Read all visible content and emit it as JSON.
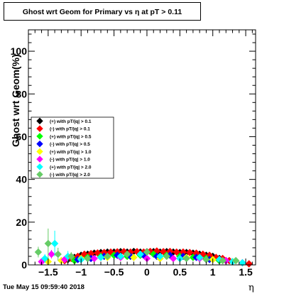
{
  "chart_data": {
    "type": "scatter",
    "title": "Ghost wrt Geom for Primary vs   η at pT > 0.11",
    "xlabel": "η",
    "ylabel": "Ghost wrt Geom(%)",
    "xlim": [
      -1.8,
      1.65
    ],
    "ylim": [
      0,
      110
    ],
    "x_ticks": [
      -1.5,
      -1,
      -0.5,
      0,
      0.5,
      1,
      1.5
    ],
    "x_tick_labels": [
      "−1.5",
      "−1",
      "−0.5",
      "0",
      "0.5",
      "1",
      "1.5"
    ],
    "y_ticks": [
      0,
      20,
      40,
      60,
      80,
      100
    ],
    "y_tick_labels": [
      "0",
      "20",
      "40",
      "60",
      "80",
      "100"
    ],
    "legend_position": "middle-left",
    "series": [
      {
        "name": "(+) with pT/|q| > 0.1",
        "color": "#000000",
        "x": [
          -1.2,
          -1.1,
          -1.0,
          -0.9,
          -0.8,
          -0.7,
          -0.6,
          -0.5,
          -0.4,
          -0.3,
          -0.2,
          -0.1,
          0.0,
          0.1,
          0.2,
          0.3,
          0.4,
          0.5,
          0.6,
          0.7,
          0.8,
          0.9,
          1.0,
          1.1,
          1.2
        ],
        "y": [
          2.5,
          3.5,
          4.5,
          5.0,
          5.5,
          5.8,
          6.0,
          6.0,
          6.2,
          6.0,
          6.3,
          6.0,
          6.1,
          6.2,
          6.0,
          6.2,
          6.0,
          5.8,
          5.8,
          5.5,
          5.0,
          4.5,
          4.0,
          3.0,
          2.0
        ],
        "err": [
          1.0,
          1.0,
          0.8,
          0.6,
          0.5,
          0.5,
          0.5,
          0.5,
          0.5,
          0.5,
          0.5,
          0.5,
          0.5,
          0.5,
          0.5,
          0.5,
          0.5,
          0.5,
          0.5,
          0.5,
          0.6,
          0.7,
          0.8,
          1.0,
          1.0
        ]
      },
      {
        "name": "(-) with pT/|q| > 0.1",
        "color": "#ff0000",
        "x": [
          -1.25,
          -1.15,
          -1.05,
          -0.95,
          -0.85,
          -0.75,
          -0.65,
          -0.55,
          -0.45,
          -0.35,
          -0.25,
          -0.15,
          -0.05,
          0.05,
          0.15,
          0.25,
          0.35,
          0.45,
          0.55,
          0.65,
          0.75,
          0.85,
          0.95,
          1.05,
          1.15,
          1.25,
          1.55
        ],
        "y": [
          2.0,
          3.0,
          4.0,
          5.0,
          5.3,
          5.6,
          5.8,
          6.0,
          6.1,
          6.2,
          6.0,
          6.2,
          6.0,
          6.3,
          6.5,
          6.2,
          6.3,
          6.0,
          6.0,
          5.8,
          5.5,
          5.0,
          4.5,
          3.5,
          3.0,
          2.0,
          0.5
        ],
        "err": [
          1.0,
          1.0,
          0.8,
          0.6,
          0.5,
          0.5,
          0.5,
          0.5,
          0.5,
          0.5,
          0.5,
          0.5,
          0.5,
          0.5,
          0.5,
          0.5,
          0.5,
          0.5,
          0.5,
          0.5,
          0.5,
          0.6,
          0.7,
          0.8,
          1.0,
          1.0,
          0.5
        ]
      },
      {
        "name": "(+) with pT/|q| > 0.5",
        "color": "#00ff00",
        "x": [
          -1.1,
          -0.9,
          -0.7,
          -0.5,
          -0.3,
          -0.1,
          0.1,
          0.3,
          0.5,
          0.7,
          0.9,
          1.1
        ],
        "y": [
          2.0,
          3.5,
          4.0,
          4.5,
          4.0,
          4.5,
          5.0,
          4.5,
          4.0,
          3.5,
          3.0,
          2.0
        ],
        "err": [
          1.2,
          1.0,
          0.8,
          0.8,
          0.8,
          0.8,
          0.8,
          0.8,
          0.8,
          0.8,
          1.0,
          1.2
        ]
      },
      {
        "name": "(-) with pT/|q| > 0.5",
        "color": "#0000ff",
        "x": [
          -1.05,
          -0.85,
          -0.65,
          -0.45,
          -0.25,
          -0.05,
          0.15,
          0.35,
          0.55,
          0.75,
          0.95
        ],
        "y": [
          2.5,
          3.0,
          4.0,
          4.5,
          4.0,
          4.5,
          4.0,
          4.5,
          4.0,
          3.5,
          2.5
        ],
        "err": [
          1.2,
          1.0,
          0.8,
          0.8,
          0.8,
          0.8,
          0.8,
          0.8,
          0.8,
          0.8,
          1.0
        ]
      },
      {
        "name": "(+) with pT/|q| > 1.0",
        "color": "#ffff00",
        "x": [
          -1.5,
          -1.3,
          -1.0,
          -0.6,
          -0.2,
          0.2,
          0.6,
          1.0,
          1.3
        ],
        "y": [
          1.5,
          2.0,
          3.0,
          3.5,
          3.5,
          3.0,
          3.5,
          2.5,
          1.5
        ],
        "err": [
          1.5,
          1.2,
          1.0,
          1.0,
          1.0,
          1.0,
          1.0,
          1.0,
          1.2
        ]
      },
      {
        "name": "(-) with pT/|q| > 1.0",
        "color": "#ff00ff",
        "x": [
          -1.6,
          -1.45,
          -1.25,
          -0.8,
          -0.4,
          0.0,
          0.4,
          0.8,
          1.2,
          1.45
        ],
        "y": [
          1.5,
          5.0,
          2.5,
          3.0,
          3.5,
          3.0,
          3.0,
          3.0,
          2.0,
          1.0
        ],
        "err": [
          1.5,
          2.0,
          1.2,
          1.0,
          1.0,
          1.0,
          1.0,
          1.0,
          1.2,
          1.2
        ]
      },
      {
        "name": "(+) with pT/|q| > 2.0",
        "color": "#00ffff",
        "x": [
          -1.55,
          -1.4,
          -1.2,
          -1.0,
          -0.7,
          -0.4,
          -0.1,
          0.2,
          0.5,
          0.8,
          1.1,
          1.3,
          1.45
        ],
        "y": [
          3.0,
          10.0,
          4.0,
          2.5,
          3.5,
          4.0,
          5.0,
          4.0,
          3.0,
          3.5,
          2.5,
          1.5,
          1.0
        ],
        "err": [
          2.0,
          6.0,
          2.5,
          1.5,
          1.5,
          1.5,
          1.5,
          1.5,
          1.5,
          1.5,
          1.5,
          1.5,
          1.5
        ]
      },
      {
        "name": "(-) with pT/|q| > 2.0",
        "color": "#66cc66",
        "x": [
          -1.65,
          -1.5,
          -1.35,
          -1.15,
          -0.9,
          -0.6,
          -0.3,
          0.0,
          0.3,
          0.6,
          0.9,
          1.15,
          1.35
        ],
        "y": [
          6.0,
          10.0,
          5.0,
          4.0,
          3.0,
          4.0,
          5.0,
          6.0,
          4.0,
          3.0,
          2.5,
          2.0,
          2.0
        ],
        "err": [
          2.5,
          7.0,
          3.0,
          2.0,
          1.5,
          1.5,
          1.5,
          1.5,
          1.5,
          1.5,
          1.5,
          1.5,
          1.5
        ]
      }
    ]
  },
  "footer": {
    "timestamp": "Tue May 15 09:59:40 2018"
  }
}
